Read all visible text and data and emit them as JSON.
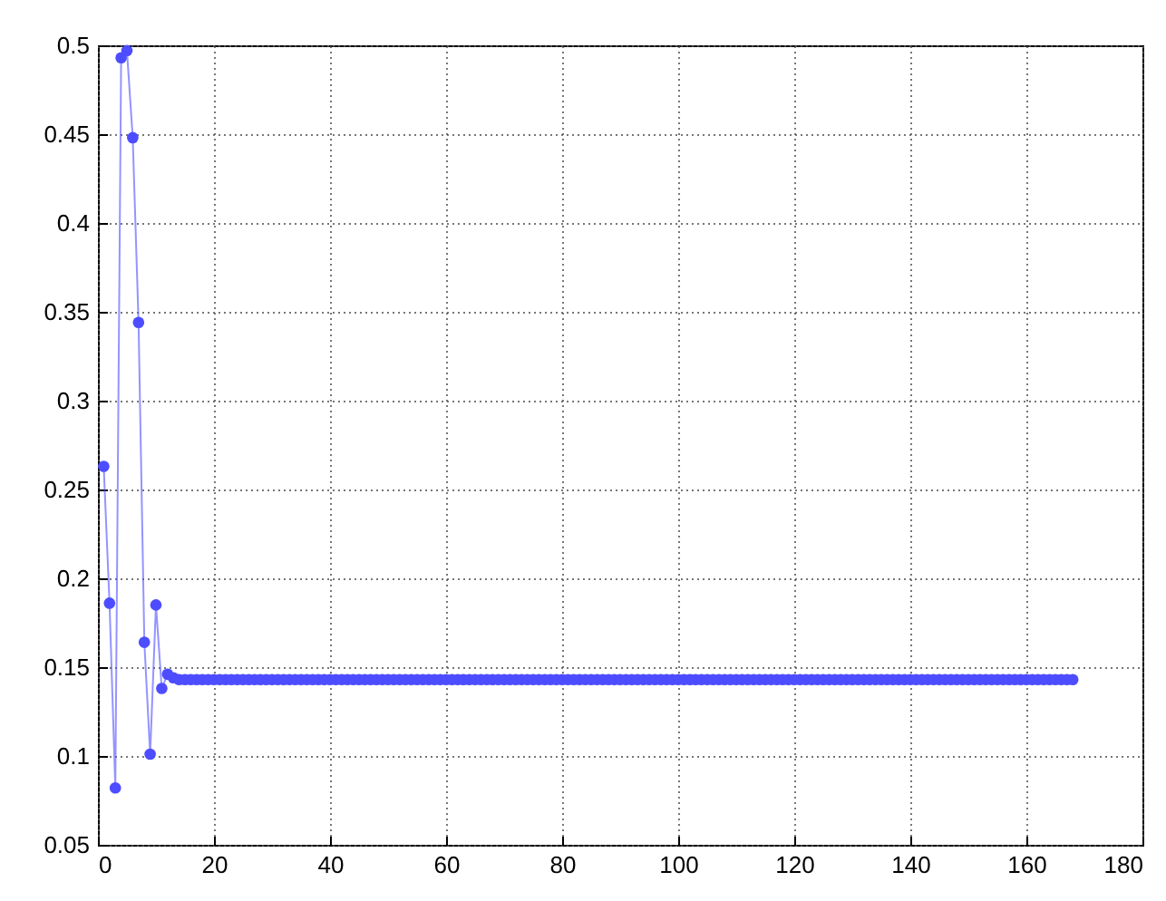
{
  "chart_data": {
    "type": "line",
    "marker": "circle",
    "grid": true,
    "line_style": "solid",
    "xlim": [
      0,
      180
    ],
    "xticks": [
      0,
      20,
      40,
      60,
      80,
      100,
      120,
      140,
      160,
      180
    ],
    "ylim": [
      0.05,
      0.5
    ],
    "yticks": [
      0.05,
      0.1,
      0.15,
      0.2,
      0.25,
      0.3,
      0.35,
      0.4,
      0.45,
      0.5
    ],
    "series": [
      {
        "color": "#4d4dff",
        "x": [
          1,
          2,
          3,
          4,
          5,
          6,
          7,
          8,
          9,
          10,
          11,
          12,
          13,
          14,
          15,
          16,
          17,
          18,
          19,
          20,
          21,
          22,
          23,
          24,
          25,
          26,
          27,
          28,
          29,
          30,
          31,
          32,
          33,
          34,
          35,
          36,
          37,
          38,
          39,
          40,
          41,
          42,
          43,
          44,
          45,
          46,
          47,
          48,
          49,
          50,
          51,
          52,
          53,
          54,
          55,
          56,
          57,
          58,
          59,
          60,
          61,
          62,
          63,
          64,
          65,
          66,
          67,
          68,
          69,
          70,
          71,
          72,
          73,
          74,
          75,
          76,
          77,
          78,
          79,
          80,
          81,
          82,
          83,
          84,
          85,
          86,
          87,
          88,
          89,
          90,
          91,
          92,
          93,
          94,
          95,
          96,
          97,
          98,
          99,
          100,
          101,
          102,
          103,
          104,
          105,
          106,
          107,
          108,
          109,
          110,
          111,
          112,
          113,
          114,
          115,
          116,
          117,
          118,
          119,
          120,
          121,
          122,
          123,
          124,
          125,
          126,
          127,
          128,
          129,
          130,
          131,
          132,
          133,
          134,
          135,
          136,
          137,
          138,
          139,
          140,
          141,
          142,
          143,
          144,
          145,
          146,
          147,
          148,
          149,
          150,
          151,
          152,
          153,
          154,
          155,
          156,
          157,
          158,
          159,
          160,
          161,
          162,
          163,
          164,
          165,
          166,
          167,
          168
        ],
        "values": [
          0.263,
          0.186,
          0.082,
          0.493,
          0.497,
          0.448,
          0.344,
          0.164,
          0.101,
          0.185,
          0.138,
          0.146,
          0.144,
          0.143,
          0.143,
          0.143,
          0.143,
          0.143,
          0.143,
          0.143,
          0.143,
          0.143,
          0.143,
          0.143,
          0.143,
          0.143,
          0.143,
          0.143,
          0.143,
          0.143,
          0.143,
          0.143,
          0.143,
          0.143,
          0.143,
          0.143,
          0.143,
          0.143,
          0.143,
          0.143,
          0.143,
          0.143,
          0.143,
          0.143,
          0.143,
          0.143,
          0.143,
          0.143,
          0.143,
          0.143,
          0.143,
          0.143,
          0.143,
          0.143,
          0.143,
          0.143,
          0.143,
          0.143,
          0.143,
          0.143,
          0.143,
          0.143,
          0.143,
          0.143,
          0.143,
          0.143,
          0.143,
          0.143,
          0.143,
          0.143,
          0.143,
          0.143,
          0.143,
          0.143,
          0.143,
          0.143,
          0.143,
          0.143,
          0.143,
          0.143,
          0.143,
          0.143,
          0.143,
          0.143,
          0.143,
          0.143,
          0.143,
          0.143,
          0.143,
          0.143,
          0.143,
          0.143,
          0.143,
          0.143,
          0.143,
          0.143,
          0.143,
          0.143,
          0.143,
          0.143,
          0.143,
          0.143,
          0.143,
          0.143,
          0.143,
          0.143,
          0.143,
          0.143,
          0.143,
          0.143,
          0.143,
          0.143,
          0.143,
          0.143,
          0.143,
          0.143,
          0.143,
          0.143,
          0.143,
          0.143,
          0.143,
          0.143,
          0.143,
          0.143,
          0.143,
          0.143,
          0.143,
          0.143,
          0.143,
          0.143,
          0.143,
          0.143,
          0.143,
          0.143,
          0.143,
          0.143,
          0.143,
          0.143,
          0.143,
          0.143,
          0.143,
          0.143,
          0.143,
          0.143,
          0.143,
          0.143,
          0.143,
          0.143,
          0.143,
          0.143,
          0.143,
          0.143,
          0.143,
          0.143,
          0.143,
          0.143,
          0.143,
          0.143,
          0.143,
          0.143,
          0.143,
          0.143,
          0.143,
          0.143,
          0.143,
          0.143,
          0.143,
          0.143
        ]
      }
    ]
  }
}
